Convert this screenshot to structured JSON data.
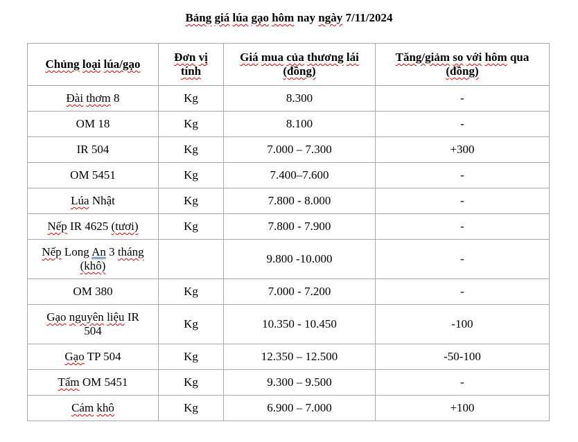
{
  "colors": {
    "background": "#ffffff",
    "text": "#000000",
    "table_border": "#a6a6a6",
    "spellcheck_underline": "#e00000",
    "grammar_underline": "#3a6cb5"
  },
  "title": {
    "text": "Bảng giá lúa gạo hôm nay ngày 7/11/2024",
    "segments": [
      {
        "t": "Bảng",
        "u": "red"
      },
      {
        "t": " "
      },
      {
        "t": "giá",
        "u": "red"
      },
      {
        "t": " "
      },
      {
        "t": "lúa",
        "u": "red"
      },
      {
        "t": " "
      },
      {
        "t": "gạo",
        "u": "red"
      },
      {
        "t": " "
      },
      {
        "t": "hôm",
        "u": "red"
      },
      {
        "t": " nay "
      },
      {
        "t": "ngày",
        "u": "red"
      },
      {
        "t": " 7/11/2024"
      }
    ]
  },
  "table": {
    "columns": [
      {
        "id": "type",
        "label": "Chủng loại lúa/gạo",
        "segments": [
          {
            "t": "Chủng",
            "u": "red"
          },
          {
            "t": " "
          },
          {
            "t": "loại",
            "u": "red"
          },
          {
            "t": " "
          },
          {
            "t": "lúa/gạo",
            "u": "red"
          }
        ]
      },
      {
        "id": "unit",
        "label": "Đơn vị tính",
        "segments": [
          {
            "t": "Đơn",
            "u": "red"
          },
          {
            "t": " "
          },
          {
            "t": "vị",
            "u": "red"
          },
          {
            "br": true
          },
          {
            "t": "tính",
            "u": "red"
          }
        ]
      },
      {
        "id": "price",
        "label": "Giá mua của thương lái (đồng)",
        "segments": [
          {
            "t": "Giá",
            "u": "red"
          },
          {
            "t": " "
          },
          {
            "t": "mua",
            "u": "red"
          },
          {
            "t": " "
          },
          {
            "t": "của",
            "u": "red"
          },
          {
            "t": " "
          },
          {
            "t": "thương",
            "u": "red"
          },
          {
            "t": " "
          },
          {
            "t": "lái",
            "u": "red"
          },
          {
            "br": true
          },
          {
            "t": "(đồng)",
            "u": "red"
          }
        ]
      },
      {
        "id": "change",
        "label": "Tăng/giảm so với hôm qua (đồng)",
        "segments": [
          {
            "t": "Tăng/giảm",
            "u": "red"
          },
          {
            "t": " "
          },
          {
            "t": "so",
            "u": "red"
          },
          {
            "t": " "
          },
          {
            "t": "với",
            "u": "red"
          },
          {
            "t": " "
          },
          {
            "t": "hôm",
            "u": "red"
          },
          {
            "t": " qua"
          },
          {
            "br": true
          },
          {
            "t": "(đồng)",
            "u": "red"
          }
        ]
      }
    ],
    "rows": [
      {
        "type": "Đài thơm 8",
        "type_segments": [
          {
            "t": "Đài",
            "u": "red"
          },
          {
            "t": " "
          },
          {
            "t": "thơm",
            "u": "red"
          },
          {
            "t": " 8"
          }
        ],
        "unit": "Kg",
        "price": "8.300",
        "change": "-"
      },
      {
        "type": "OM 18",
        "type_segments": [
          {
            "t": "OM 18"
          }
        ],
        "unit": "Kg",
        "price": "8.100",
        "change": "-"
      },
      {
        "type": "IR 504",
        "type_segments": [
          {
            "t": "IR 504"
          }
        ],
        "unit": "Kg",
        "price": "7.000 – 7.300",
        "change": "+300"
      },
      {
        "type": "OM 5451",
        "type_segments": [
          {
            "t": "OM 5451"
          }
        ],
        "unit": "Kg",
        "price": "7.400–7.600",
        "change": "-"
      },
      {
        "type": "Lúa Nhật",
        "type_segments": [
          {
            "t": "Lúa",
            "u": "red"
          },
          {
            "t": " Nhật"
          }
        ],
        "unit": "Kg",
        "price": "7.800 - 8.000",
        "change": "-"
      },
      {
        "type": "Nếp IR 4625 (tươi)",
        "type_segments": [
          {
            "t": "Nếp",
            "u": "red"
          },
          {
            "t": " IR 4625 "
          },
          {
            "t": "(tươi)",
            "u": "red"
          }
        ],
        "unit": "Kg",
        "price": "7.800 - 7.900",
        "change": "-"
      },
      {
        "type": "Nếp Long An 3 tháng (khô)",
        "type_segments": [
          {
            "t": "Nếp",
            "u": "red"
          },
          {
            "t": " Long "
          },
          {
            "t": "An",
            "u": "blue"
          },
          {
            "t": " 3 "
          },
          {
            "t": "tháng",
            "u": "red"
          },
          {
            "br": true
          },
          {
            "t": "(khô)",
            "u": "red"
          }
        ],
        "unit": "",
        "price": "9.800 -10.000",
        "change": "-"
      },
      {
        "type": "OM 380",
        "type_segments": [
          {
            "t": "OM 380"
          }
        ],
        "unit": "Kg",
        "price": "7.000 - 7.200",
        "change": "-"
      },
      {
        "type": "Gạo nguyên liệu IR 504",
        "type_segments": [
          {
            "t": "Gạo",
            "u": "red"
          },
          {
            "t": " "
          },
          {
            "t": "nguyên",
            "u": "red"
          },
          {
            "t": " "
          },
          {
            "t": "liệu",
            "u": "red"
          },
          {
            "t": " IR"
          },
          {
            "br": true
          },
          {
            "t": "504"
          }
        ],
        "unit": "Kg",
        "price": "10.350 - 10.450",
        "change": "-100"
      },
      {
        "type": "Gạo TP 504",
        "type_segments": [
          {
            "t": "Gạo",
            "u": "red"
          },
          {
            "t": " TP 504"
          }
        ],
        "unit": "Kg",
        "price": "12.350 – 12.500",
        "change": "-50-100"
      },
      {
        "type": "Tấm OM 5451",
        "type_segments": [
          {
            "t": "Tấm",
            "u": "red"
          },
          {
            "t": " OM 5451"
          }
        ],
        "unit": "Kg",
        "price": "9.300 – 9.500",
        "change": "-"
      },
      {
        "type": "Cám khô",
        "type_segments": [
          {
            "t": "Cám",
            "u": "red"
          },
          {
            "t": " "
          },
          {
            "t": "khô",
            "u": "red"
          }
        ],
        "unit": "Kg",
        "price": "6.900 – 7.000",
        "change": "+100"
      }
    ]
  }
}
